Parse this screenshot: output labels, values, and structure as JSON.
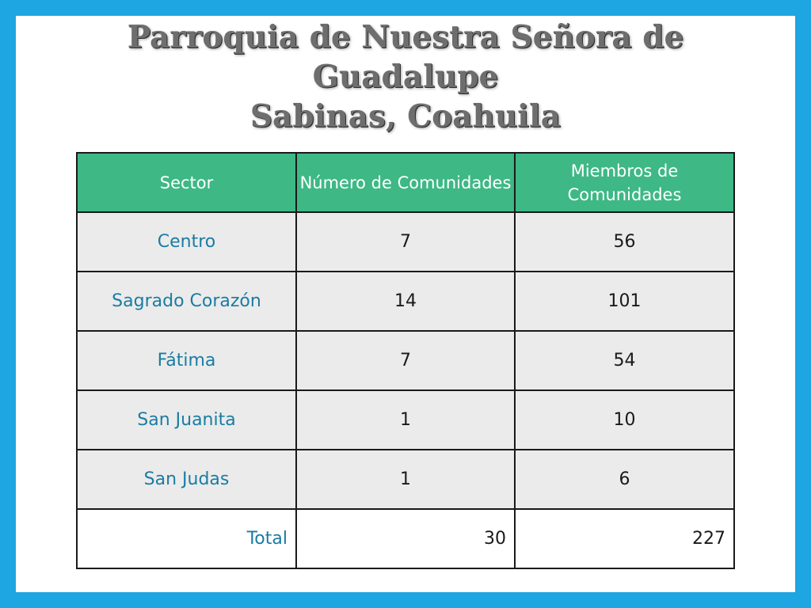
{
  "title": {
    "line1": "Parroquia de Nuestra Señora de",
    "line2": "Guadalupe",
    "line3": "Sabinas, Coahuila"
  },
  "table": {
    "headers": [
      "Sector",
      "Número de Comunidades",
      "Miembros de Comunidades"
    ],
    "rows": [
      {
        "sector": "Centro",
        "comunidades": "7",
        "miembros": "56"
      },
      {
        "sector": "Sagrado Corazón",
        "comunidades": "14",
        "miembros": "101"
      },
      {
        "sector": "Fátima",
        "comunidades": "7",
        "miembros": "54"
      },
      {
        "sector": "San Juanita",
        "comunidades": "1",
        "miembros": "10"
      },
      {
        "sector": "San Judas",
        "comunidades": "1",
        "miembros": "6"
      }
    ],
    "total": {
      "label": "Total",
      "comunidades": "30",
      "miembros": "227"
    }
  },
  "colors": {
    "frame": "#1ea6e2",
    "header_bg": "#3eb885",
    "sector_text": "#1a7ca3",
    "row_bg": "#ebebeb"
  }
}
